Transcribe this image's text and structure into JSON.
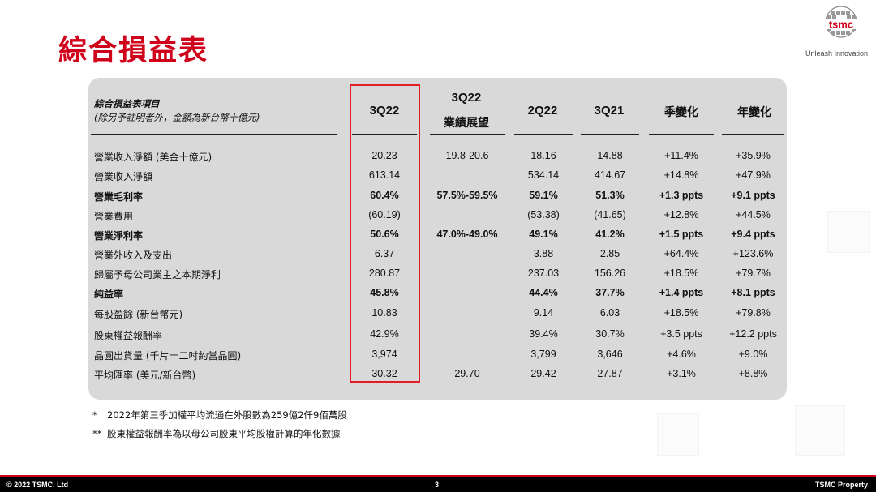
{
  "slide": {
    "title": "綜合損益表",
    "logo_text": "tsmc",
    "tagline": "Unleash Innovation"
  },
  "table": {
    "header_label": "綜合損益表項目",
    "header_sublabel": "(除另予註明者外，金額為新台幣十億元)",
    "columns": [
      "3Q22",
      "3Q22 業績展望",
      "2Q22",
      "3Q21",
      "季變化",
      "年變化"
    ],
    "guidance_header_line1": "3Q22",
    "guidance_header_line2": "業績展望",
    "highlighted_column": "3Q22",
    "rows": [
      {
        "label": "營業收入淨額 (美金十億元)",
        "bold": false,
        "values": [
          "20.23",
          "19.8-20.6",
          "18.16",
          "14.88",
          "+11.4%",
          "+35.9%"
        ]
      },
      {
        "label": "營業收入淨額",
        "bold": false,
        "values": [
          "613.14",
          "",
          "534.14",
          "414.67",
          "+14.8%",
          "+47.9%"
        ]
      },
      {
        "label": "營業毛利率",
        "bold": true,
        "values": [
          "60.4%",
          "57.5%-59.5%",
          "59.1%",
          "51.3%",
          "+1.3 ppts",
          "+9.1 ppts"
        ]
      },
      {
        "label": "營業費用",
        "bold": false,
        "values": [
          "(60.19)",
          "",
          "(53.38)",
          "(41.65)",
          "+12.8%",
          "+44.5%"
        ]
      },
      {
        "label": "營業淨利率",
        "bold": true,
        "values": [
          "50.6%",
          "47.0%-49.0%",
          "49.1%",
          "41.2%",
          "+1.5 ppts",
          "+9.4 ppts"
        ]
      },
      {
        "label": "營業外收入及支出",
        "bold": false,
        "values": [
          "6.37",
          "",
          "3.88",
          "2.85",
          "+64.4%",
          "+123.6%"
        ]
      },
      {
        "label": "歸屬予母公司業主之本期淨利",
        "bold": false,
        "values": [
          "280.87",
          "",
          "237.03",
          "156.26",
          "+18.5%",
          "+79.7%"
        ]
      },
      {
        "label": "純益率",
        "bold": true,
        "values": [
          "45.8%",
          "",
          "44.4%",
          "37.7%",
          "+1.4 ppts",
          "+8.1 ppts"
        ]
      },
      {
        "label": "每股盈餘 (新台幣元)",
        "bold": false,
        "values": [
          "10.83",
          "",
          "9.14",
          "6.03",
          "+18.5%",
          "+79.8%"
        ]
      },
      {
        "label": "股東權益報酬率",
        "bold": false,
        "values": [
          "42.9%",
          "",
          "39.4%",
          "30.7%",
          "+3.5 ppts",
          "+12.2 ppts"
        ]
      },
      {
        "label": "晶圓出貨量 (千片十二吋約當晶圓)",
        "bold": false,
        "values": [
          "3,974",
          "",
          "3,799",
          "3,646",
          "+4.6%",
          "+9.0%"
        ]
      },
      {
        "label": "平均匯率 (美元/新台幣)",
        "bold": false,
        "values": [
          "30.32",
          "29.70",
          "29.42",
          "27.87",
          "+3.1%",
          "+8.8%"
        ]
      }
    ]
  },
  "footnotes": [
    {
      "mark": "*",
      "text": "2022年第三季加權平均流通在外股數為259億2仟9佰萬股"
    },
    {
      "mark": "**",
      "text": "股東權益報酬率為以母公司股東平均股權計算的年化數據"
    }
  ],
  "footer": {
    "left": "© 2022 TSMC, Ltd",
    "page_number": "3",
    "right": "TSMC Property"
  },
  "colors": {
    "accent_red": "#d0021b",
    "highlight_box": "#e01e24",
    "panel_grey": "#d9d9d9",
    "footer_black": "#000000"
  }
}
